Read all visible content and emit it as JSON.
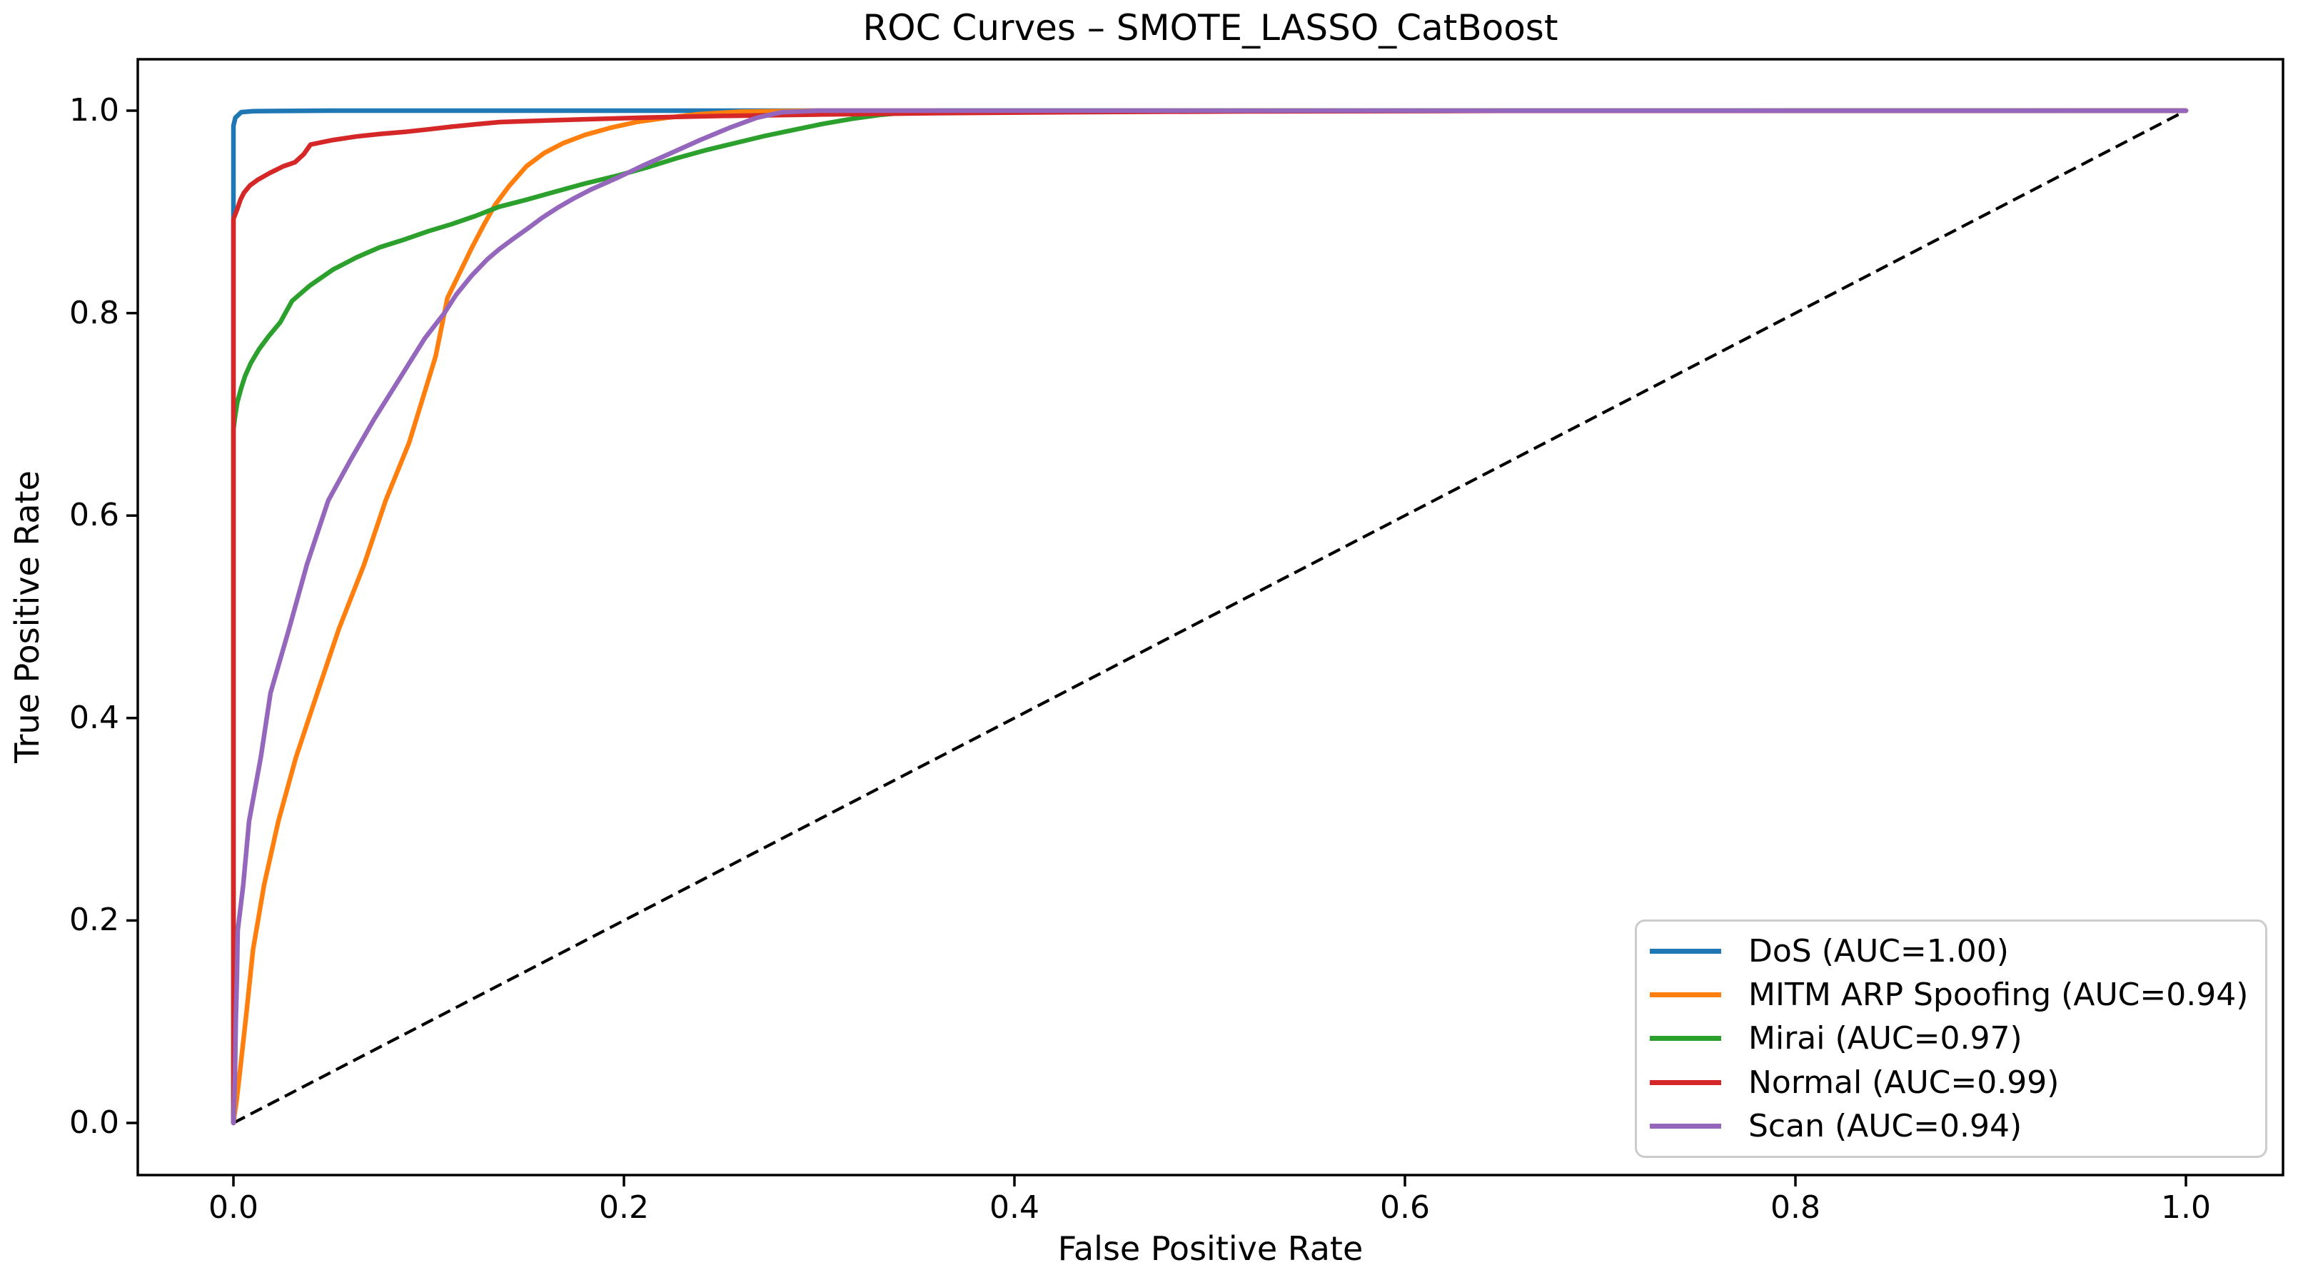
{
  "chart_data": {
    "type": "line",
    "title": "ROC Curves – SMOTE_LASSO_CatBoost",
    "xlabel": "False Positive Rate",
    "ylabel": "True Positive Rate",
    "xlim": [
      -0.049,
      1.049
    ],
    "ylim": [
      -0.0515,
      1.051
    ],
    "xticks": [
      0.0,
      0.2,
      0.4,
      0.6,
      0.8,
      1.0
    ],
    "yticks": [
      0.0,
      0.2,
      0.4,
      0.6,
      0.8,
      1.0
    ],
    "grid": false,
    "legend_position": "lower right",
    "reference_line": {
      "name": "chance-diagonal",
      "style": "dashed",
      "color": "#000000",
      "x": [
        0,
        1
      ],
      "y": [
        0,
        1
      ]
    },
    "series": [
      {
        "name": "DoS",
        "auc": "1.00",
        "legend_label": "DoS (AUC=1.00)",
        "color": "#1f77b4",
        "x": [
          0,
          0,
          0.001,
          0.004,
          0.01,
          0.05,
          1
        ],
        "y": [
          0,
          0.985,
          0.993,
          0.9985,
          0.9995,
          1,
          1
        ]
      },
      {
        "name": "MITM ARP Spoofing",
        "auc": "0.94",
        "legend_label": "MITM ARP Spoofing (AUC=0.94)",
        "color": "#ff7f0e",
        "x": [
          0,
          0.0005,
          0.0015,
          0.003,
          0.0066,
          0.01,
          0.0157,
          0.023,
          0.032,
          0.043,
          0.054,
          0.067,
          0.078,
          0.09,
          0.1035,
          0.1096,
          0.1157,
          0.1217,
          0.1279,
          0.134,
          0.141,
          0.15,
          0.159,
          0.169,
          0.18,
          0.193,
          0.207,
          0.222,
          0.238,
          0.26,
          0.3,
          1
        ],
        "y": [
          0,
          0.008,
          0.02,
          0.045,
          0.108,
          0.171,
          0.235,
          0.298,
          0.361,
          0.425,
          0.488,
          0.552,
          0.615,
          0.672,
          0.757,
          0.815,
          0.839,
          0.863,
          0.886,
          0.907,
          0.925,
          0.945,
          0.958,
          0.968,
          0.976,
          0.983,
          0.989,
          0.993,
          0.9965,
          0.999,
          1,
          1
        ]
      },
      {
        "name": "Mirai",
        "auc": "0.97",
        "legend_label": "Mirai (AUC=0.97)",
        "color": "#2ca02c",
        "x": [
          0,
          0,
          0.001,
          0.002,
          0.004,
          0.006,
          0.009,
          0.013,
          0.018,
          0.024,
          0.03,
          0.039,
          0.051,
          0.063,
          0.075,
          0.088,
          0.1,
          0.112,
          0.124,
          0.136,
          0.15,
          0.165,
          0.18,
          0.197,
          0.212,
          0.227,
          0.242,
          0.257,
          0.272,
          0.287,
          0.302,
          0.317,
          0.332,
          0.347,
          0.36,
          1
        ],
        "y": [
          0,
          0.685,
          0.7,
          0.712,
          0.726,
          0.738,
          0.751,
          0.764,
          0.777,
          0.791,
          0.812,
          0.827,
          0.843,
          0.855,
          0.865,
          0.873,
          0.881,
          0.888,
          0.896,
          0.905,
          0.912,
          0.92,
          0.928,
          0.936,
          0.944,
          0.953,
          0.961,
          0.968,
          0.975,
          0.981,
          0.987,
          0.992,
          0.996,
          0.9985,
          1,
          1
        ]
      },
      {
        "name": "Normal",
        "auc": "0.99",
        "legend_label": "Normal (AUC=0.99)",
        "color": "#d62728",
        "x": [
          0,
          0,
          0.002,
          0.0036,
          0.0054,
          0.0084,
          0.0127,
          0.0182,
          0.0255,
          0.0315,
          0.036,
          0.0395,
          0.051,
          0.063,
          0.0753,
          0.0877,
          0.0998,
          0.112,
          0.124,
          0.1364,
          0.155,
          0.18,
          0.21,
          0.25,
          0.3,
          0.36,
          0.43,
          0.52,
          0.65,
          1
        ],
        "y": [
          0,
          0.893,
          0.903,
          0.912,
          0.919,
          0.926,
          0.932,
          0.938,
          0.945,
          0.949,
          0.957,
          0.9665,
          0.971,
          0.9745,
          0.977,
          0.979,
          0.9815,
          0.9842,
          0.9865,
          0.9887,
          0.99,
          0.9915,
          0.9931,
          0.9948,
          0.9962,
          0.9975,
          0.9985,
          0.9993,
          0.9998,
          1
        ]
      },
      {
        "name": "Scan",
        "auc": "0.94",
        "legend_label": "Scan (AUC=0.94)",
        "color": "#9467bd",
        "x": [
          0,
          0.0008,
          0.0012,
          0.0018,
          0.0022,
          0.005,
          0.008,
          0.014,
          0.019,
          0.0285,
          0.0377,
          0.0486,
          0.06,
          0.072,
          0.085,
          0.098,
          0.108,
          0.114,
          0.122,
          0.13,
          0.136,
          0.143,
          0.151,
          0.158,
          0.166,
          0.174,
          0.183,
          0.197,
          0.21,
          0.224,
          0.239,
          0.254,
          0.268,
          0.281,
          0.3,
          1
        ],
        "y": [
          0,
          0.05,
          0.1,
          0.145,
          0.19,
          0.235,
          0.298,
          0.361,
          0.425,
          0.488,
          0.552,
          0.615,
          0.655,
          0.695,
          0.735,
          0.775,
          0.8,
          0.818,
          0.837,
          0.853,
          0.863,
          0.873,
          0.884,
          0.894,
          0.904,
          0.913,
          0.922,
          0.934,
          0.946,
          0.958,
          0.971,
          0.983,
          0.993,
          0.9985,
          1,
          1
        ]
      }
    ]
  },
  "style": {
    "axis_color": "#000000",
    "tick_label_format_decimals": 1,
    "legend_border_color": "#cccccc",
    "legend_background": "#ffffff"
  }
}
